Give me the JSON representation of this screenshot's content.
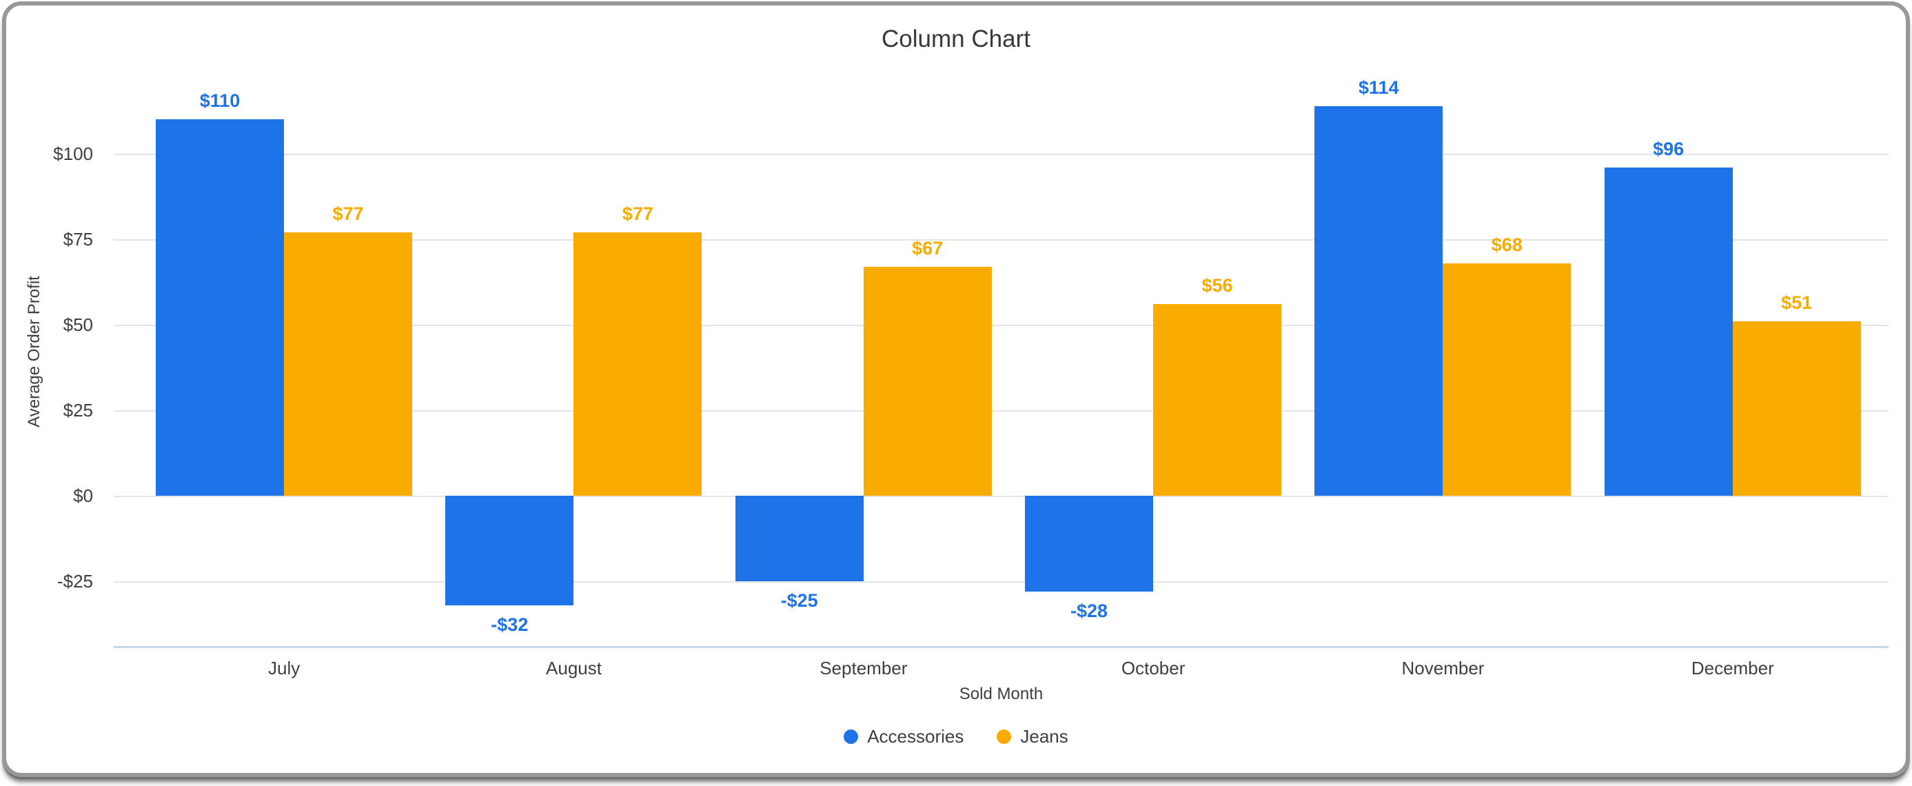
{
  "chart_data": {
    "type": "bar",
    "title": "Column Chart",
    "xlabel": "Sold Month",
    "ylabel": "Average Order Profit",
    "categories": [
      "July",
      "August",
      "September",
      "October",
      "November",
      "December"
    ],
    "series": [
      {
        "name": "Accessories",
        "color": "#1e73e8",
        "values": [
          110,
          -32,
          -25,
          -28,
          114,
          96
        ],
        "labels": [
          "$110",
          "-$32",
          "-$25",
          "-$28",
          "$114",
          "$96"
        ]
      },
      {
        "name": "Jeans",
        "color": "#f9ab00",
        "values": [
          77,
          77,
          67,
          56,
          68,
          51
        ],
        "labels": [
          "$77",
          "$77",
          "$67",
          "$56",
          "$68",
          "$51"
        ]
      }
    ],
    "yticks": [
      100,
      75,
      50,
      25,
      0,
      -25
    ],
    "ytick_labels": [
      "$100",
      "$75",
      "$50",
      "$25",
      "$0",
      "-$25"
    ],
    "ylim": [
      -44.6,
      128.8
    ],
    "grid": true,
    "legend_position": "bottom",
    "colors": {
      "grid": "#e4e4e4",
      "axis_line": "#c9d5ea",
      "text": "#3c4043",
      "title": "#35383d"
    }
  }
}
